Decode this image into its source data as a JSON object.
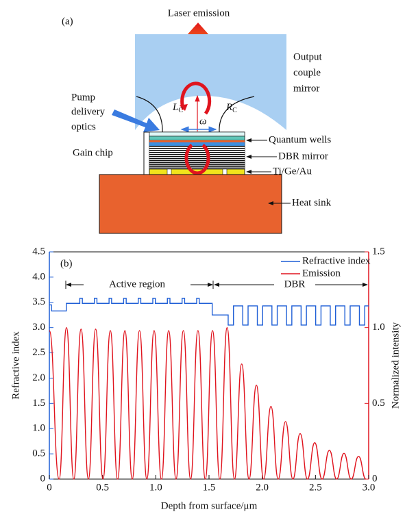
{
  "diagram": {
    "label": "(a)",
    "laser_emission": "Laser emission",
    "output_mirror": [
      "Output",
      "couple",
      "mirror"
    ],
    "pump_optics": [
      "Pump",
      "delivery",
      "optics"
    ],
    "lc": [
      "L",
      "C"
    ],
    "rc": [
      "R",
      "C"
    ],
    "omega": "ω",
    "gain_chip": "Gain chip",
    "quantum_wells": "Quantum wells",
    "dbr_mirror": "DBR mirror",
    "ti_ge_au": "Ti/Ge/Au",
    "heat_sink": "Heat sink"
  },
  "chart_data": {
    "type": "line",
    "label": "(b)",
    "x_label": "Depth from surface/μm",
    "y_label": "Refractive index",
    "y2_label": "Normalized intensity",
    "xlim": [
      0,
      3
    ],
    "xticks": [
      0,
      0.5,
      {
        "value": 1,
        "label": "1.0"
      },
      1.5,
      {
        "value": 2,
        "label": "2.0"
      },
      2.5,
      {
        "value": 3,
        "label": "3.0"
      }
    ],
    "ylim": [
      0,
      4.5
    ],
    "yticks": [
      0,
      0.5,
      {
        "value": 1,
        "label": "1.0"
      },
      1.5,
      {
        "value": 2,
        "label": "2.0"
      },
      2.5,
      {
        "value": 3,
        "label": "3.0"
      },
      3.5,
      {
        "value": 4,
        "label": "4.0"
      },
      4.5
    ],
    "y2lim": [
      0,
      1.5
    ],
    "y2ticks": [
      0,
      0.5,
      {
        "value": 1,
        "label": "1.0"
      },
      1.5
    ],
    "legend": "upper right",
    "annotations": [
      "Active region",
      "DBR"
    ],
    "series": [
      {
        "name": "Refractive index",
        "color": "#1f5fd6",
        "smooth": false,
        "x": [
          0,
          0.02,
          0.02,
          0.16,
          0.16,
          0.286,
          0.286,
          0.31,
          0.31,
          0.423,
          0.423,
          0.447,
          0.447,
          0.561,
          0.561,
          0.585,
          0.585,
          0.698,
          0.698,
          0.722,
          0.722,
          0.835,
          0.835,
          0.859,
          0.859,
          0.972,
          0.972,
          0.996,
          0.996,
          1.109,
          1.109,
          1.133,
          1.133,
          1.247,
          1.247,
          1.271,
          1.271,
          1.384,
          1.384,
          1.408,
          1.408,
          1.53,
          1.53,
          1.68,
          1.68,
          1.73,
          1.73,
          1.817,
          1.817,
          1.867,
          1.867,
          1.954,
          1.954,
          2.004,
          2.004,
          2.091,
          2.091,
          2.141,
          2.141,
          2.228,
          2.228,
          2.278,
          2.278,
          2.365,
          2.365,
          2.415,
          2.415,
          2.502,
          2.502,
          2.552,
          2.552,
          2.639,
          2.639,
          2.689,
          2.689,
          2.776,
          2.776,
          2.826,
          2.826,
          2.913,
          2.913,
          2.963,
          2.963,
          3.0
        ],
        "values": [
          3.45,
          3.45,
          3.33,
          3.33,
          3.48,
          3.48,
          3.58,
          3.58,
          3.48,
          3.48,
          3.58,
          3.58,
          3.48,
          3.48,
          3.58,
          3.58,
          3.48,
          3.48,
          3.58,
          3.58,
          3.48,
          3.48,
          3.58,
          3.58,
          3.48,
          3.48,
          3.58,
          3.58,
          3.48,
          3.48,
          3.58,
          3.58,
          3.48,
          3.48,
          3.58,
          3.58,
          3.48,
          3.48,
          3.58,
          3.58,
          3.48,
          3.48,
          3.25,
          3.25,
          3.05,
          3.05,
          3.43,
          3.43,
          3.05,
          3.05,
          3.43,
          3.43,
          3.05,
          3.05,
          3.43,
          3.43,
          3.05,
          3.05,
          3.43,
          3.43,
          3.05,
          3.05,
          3.43,
          3.43,
          3.05,
          3.05,
          3.43,
          3.43,
          3.05,
          3.05,
          3.43,
          3.43,
          3.05,
          3.05,
          3.43,
          3.43,
          3.05,
          3.05,
          3.43,
          3.43,
          3.05,
          3.05,
          3.43,
          3.43
        ]
      },
      {
        "name": "Emission",
        "color": "#e0141e",
        "axis": "y2",
        "smooth": true,
        "x": [
          0,
          0.092,
          0.161,
          0.23,
          0.298,
          0.367,
          0.435,
          0.504,
          0.573,
          0.641,
          0.71,
          0.779,
          0.847,
          0.916,
          0.984,
          1.053,
          1.121,
          1.19,
          1.259,
          1.327,
          1.396,
          1.465,
          1.533,
          1.602,
          1.67,
          1.739,
          1.807,
          1.876,
          1.945,
          2.013,
          2.082,
          2.15,
          2.219,
          2.288,
          2.356,
          2.425,
          2.493,
          2.562,
          2.631,
          2.699,
          2.768,
          2.836,
          2.905,
          2.974
        ],
        "values": [
          0.98,
          0,
          1.0,
          0,
          0.99,
          0,
          0.99,
          0,
          0.98,
          0,
          0.98,
          0,
          0.98,
          0,
          0.98,
          0,
          0.98,
          0,
          0.98,
          0,
          0.98,
          0,
          0.98,
          0,
          1.0,
          0,
          0.76,
          0,
          0.62,
          0,
          0.48,
          0,
          0.38,
          0,
          0.3,
          0,
          0.24,
          0,
          0.19,
          0,
          0.17,
          0,
          0.15,
          0
        ]
      }
    ]
  }
}
